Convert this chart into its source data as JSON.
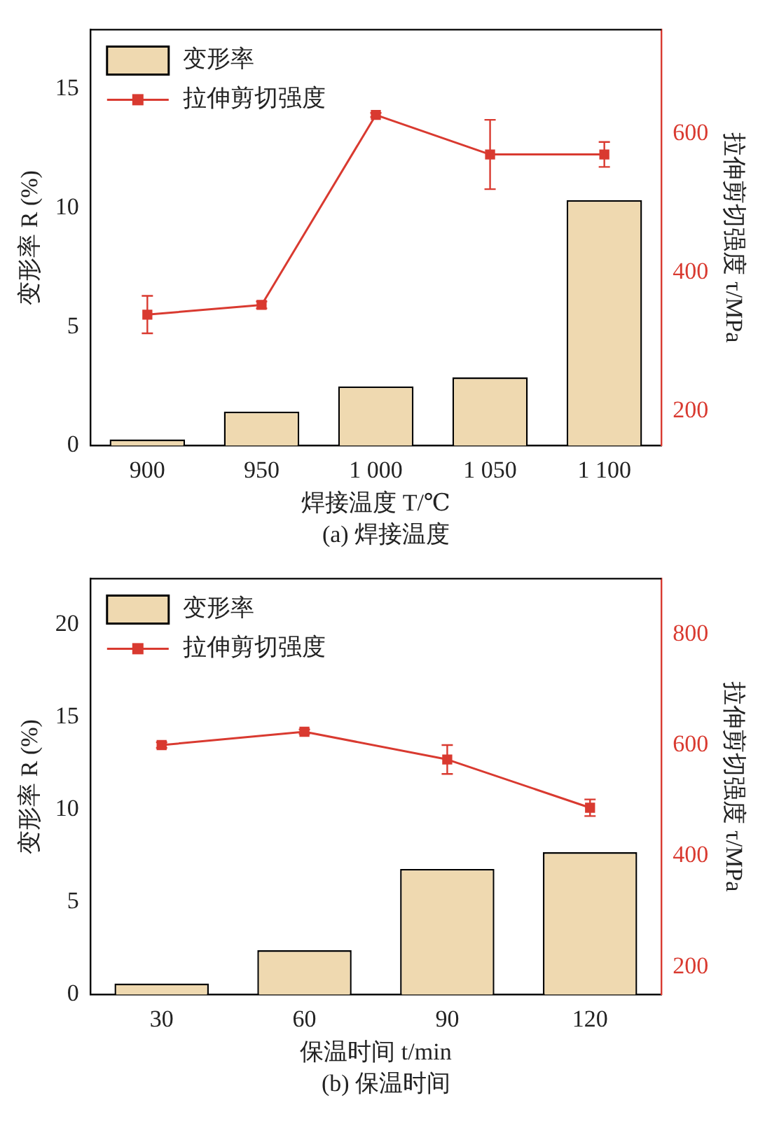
{
  "chart_data": [
    {
      "type": "bar",
      "categories": [
        "900",
        "950",
        "1 000",
        "1 050",
        "1 100"
      ],
      "xlabel": "焊接温度 T/℃",
      "ylabel": "变形率 R (%)",
      "y2label": "拉伸剪切强度 τ/MPa",
      "ylim": [
        0,
        17.5
      ],
      "yticks": [
        0,
        5,
        10,
        15
      ],
      "y2lim": [
        150,
        750
      ],
      "y2ticks": [
        200,
        400,
        600
      ],
      "legend": "top left",
      "grid": false,
      "marker": "square",
      "annotations": [
        "(a) 焊接温度"
      ],
      "series": [
        {
          "name": "变形率",
          "color": "#efd9b0",
          "values": [
            0.26,
            1.43,
            2.49,
            2.87,
            10.33
          ]
        },
        {
          "name": "拉伸剪切强度",
          "type": "line",
          "axis": "y2",
          "color": "#d93a30",
          "values": [
            339,
            353,
            627,
            570,
            570
          ],
          "errors": [
            27,
            5,
            3,
            50,
            18
          ]
        }
      ]
    },
    {
      "type": "bar",
      "categories": [
        "30",
        "60",
        "90",
        "120"
      ],
      "xlabel": "保温时间 t/min",
      "ylabel": "变形率 R (%)",
      "y2label": "拉伸剪切强度 τ/MPa",
      "ylim": [
        0,
        22.5
      ],
      "yticks": [
        0,
        5,
        10,
        15,
        20
      ],
      "y2lim": [
        150,
        900
      ],
      "y2ticks": [
        200,
        400,
        600,
        800
      ],
      "legend": "top left",
      "grid": false,
      "marker": "square",
      "annotations": [
        "(b) 保温时间"
      ],
      "series": [
        {
          "name": "变形率",
          "color": "#efd9b0",
          "values": [
            0.6,
            2.4,
            6.8,
            7.7
          ]
        },
        {
          "name": "拉伸剪切强度",
          "type": "line",
          "axis": "y2",
          "color": "#d93a30",
          "values": [
            600,
            624,
            574,
            487
          ],
          "errors": [
            5,
            4,
            26,
            15
          ]
        }
      ]
    }
  ]
}
